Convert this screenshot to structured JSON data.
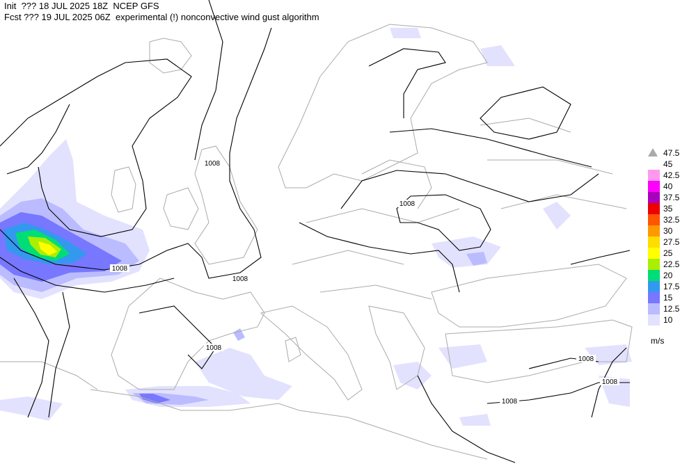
{
  "header": {
    "line1": "Init  ??? 18 JUL 2025 18Z  NCEP GFS",
    "line2": "Fcst ??? 19 JUL 2025 06Z  experimental (!) nonconvective wind gust algorithm"
  },
  "legend": {
    "items": [
      {
        "label": "47.5",
        "color": "#aaaaaa"
      },
      {
        "label": "45",
        "color": "#ffffff"
      },
      {
        "label": "42.5",
        "color": "#ff99ee"
      },
      {
        "label": "40",
        "color": "#ff00ff"
      },
      {
        "label": "37.5",
        "color": "#aa00bb"
      },
      {
        "label": "35",
        "color": "#ee0000"
      },
      {
        "label": "32.5",
        "color": "#ff5500"
      },
      {
        "label": "30",
        "color": "#ff9900"
      },
      {
        "label": "27.5",
        "color": "#ffdd00"
      },
      {
        "label": "25",
        "color": "#ffff00"
      },
      {
        "label": "22.5",
        "color": "#aaee00"
      },
      {
        "label": "20",
        "color": "#00dd77"
      },
      {
        "label": "17.5",
        "color": "#3399ee"
      },
      {
        "label": "15",
        "color": "#7777ff"
      },
      {
        "label": "12.5",
        "color": "#bbbbff"
      },
      {
        "label": "10",
        "color": "#e2e2ff"
      }
    ],
    "unit": "m/s"
  },
  "isobar_labels": [
    "1008",
    "1008",
    "1008",
    "1008",
    "1008",
    "1008",
    "1008",
    "1008"
  ]
}
